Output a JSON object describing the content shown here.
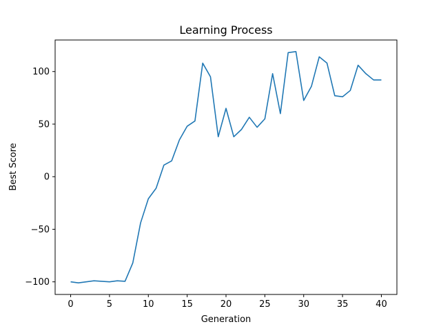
{
  "chart_data": {
    "type": "line",
    "title": "Learning Process",
    "xlabel": "Generation",
    "ylabel": "Best Score",
    "xlim": [
      -2,
      42
    ],
    "ylim": [
      -112,
      130
    ],
    "xticks": [
      0,
      5,
      10,
      15,
      20,
      25,
      30,
      35,
      40
    ],
    "xtick_labels": [
      "0",
      "5",
      "10",
      "15",
      "20",
      "25",
      "30",
      "35",
      "40"
    ],
    "yticks": [
      -100,
      -50,
      0,
      50,
      100
    ],
    "ytick_labels": [
      "−100",
      "−50",
      "0",
      "50",
      "100"
    ],
    "grid": false,
    "line_color": "#1f77b4",
    "series": [
      {
        "x": [
          0,
          1,
          2,
          3,
          4,
          5,
          6,
          7,
          8,
          9,
          10,
          11,
          12,
          13,
          14,
          15,
          16,
          17,
          18,
          19,
          20,
          21,
          22,
          23,
          24,
          25,
          26,
          27,
          28,
          29,
          30,
          31,
          32,
          33,
          34,
          35,
          36,
          37,
          38,
          39,
          40
        ],
        "values": [
          -100,
          -101,
          -100,
          -99,
          -99.5,
          -100,
          -99,
          -99.5,
          -82,
          -44,
          -21,
          -11,
          11,
          15,
          35,
          48,
          53,
          108,
          95,
          38,
          65,
          38,
          45,
          56.5,
          47,
          55,
          98,
          60,
          118,
          119,
          72.5,
          86,
          114,
          108,
          77,
          76,
          82,
          106,
          98,
          92,
          92
        ]
      }
    ]
  }
}
